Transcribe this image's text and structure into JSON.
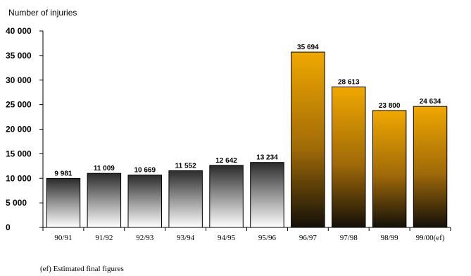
{
  "chart_data": {
    "type": "bar",
    "ylabel": "Number of injuries",
    "categories": [
      "90/91",
      "91/92",
      "92/93",
      "93/94",
      "94/95",
      "95/96",
      "96/97",
      "97/98",
      "98/99",
      "99/00(ef)"
    ],
    "values": [
      9981,
      11009,
      10669,
      11552,
      12642,
      13234,
      35694,
      28613,
      23800,
      24634
    ],
    "value_labels": [
      "9 981",
      "11 009",
      "10 669",
      "11 552",
      "12 642",
      "13 234",
      "35 694",
      "28 613",
      "23 800",
      "24 634"
    ],
    "ylim": [
      0,
      40000
    ],
    "yticks": [
      0,
      5000,
      10000,
      15000,
      20000,
      25000,
      30000,
      35000,
      40000
    ],
    "ytick_labels": [
      "0",
      "5 000",
      "10 000",
      "15 000",
      "20 000",
      "25 000",
      "30 000",
      "35 000",
      "40 000"
    ],
    "grid": false,
    "series_styles": [
      {
        "indices": [
          0,
          1,
          2,
          3,
          4,
          5
        ],
        "fill": "gradient",
        "top_color": "#2b2b2b",
        "bottom_color": "#ffffff"
      },
      {
        "indices": [
          6,
          7,
          8,
          9
        ],
        "fill": "gradient",
        "top_color": "#f0a800",
        "bottom_color": "#141008"
      }
    ],
    "footnote": "(ef) Estimated final figures"
  }
}
